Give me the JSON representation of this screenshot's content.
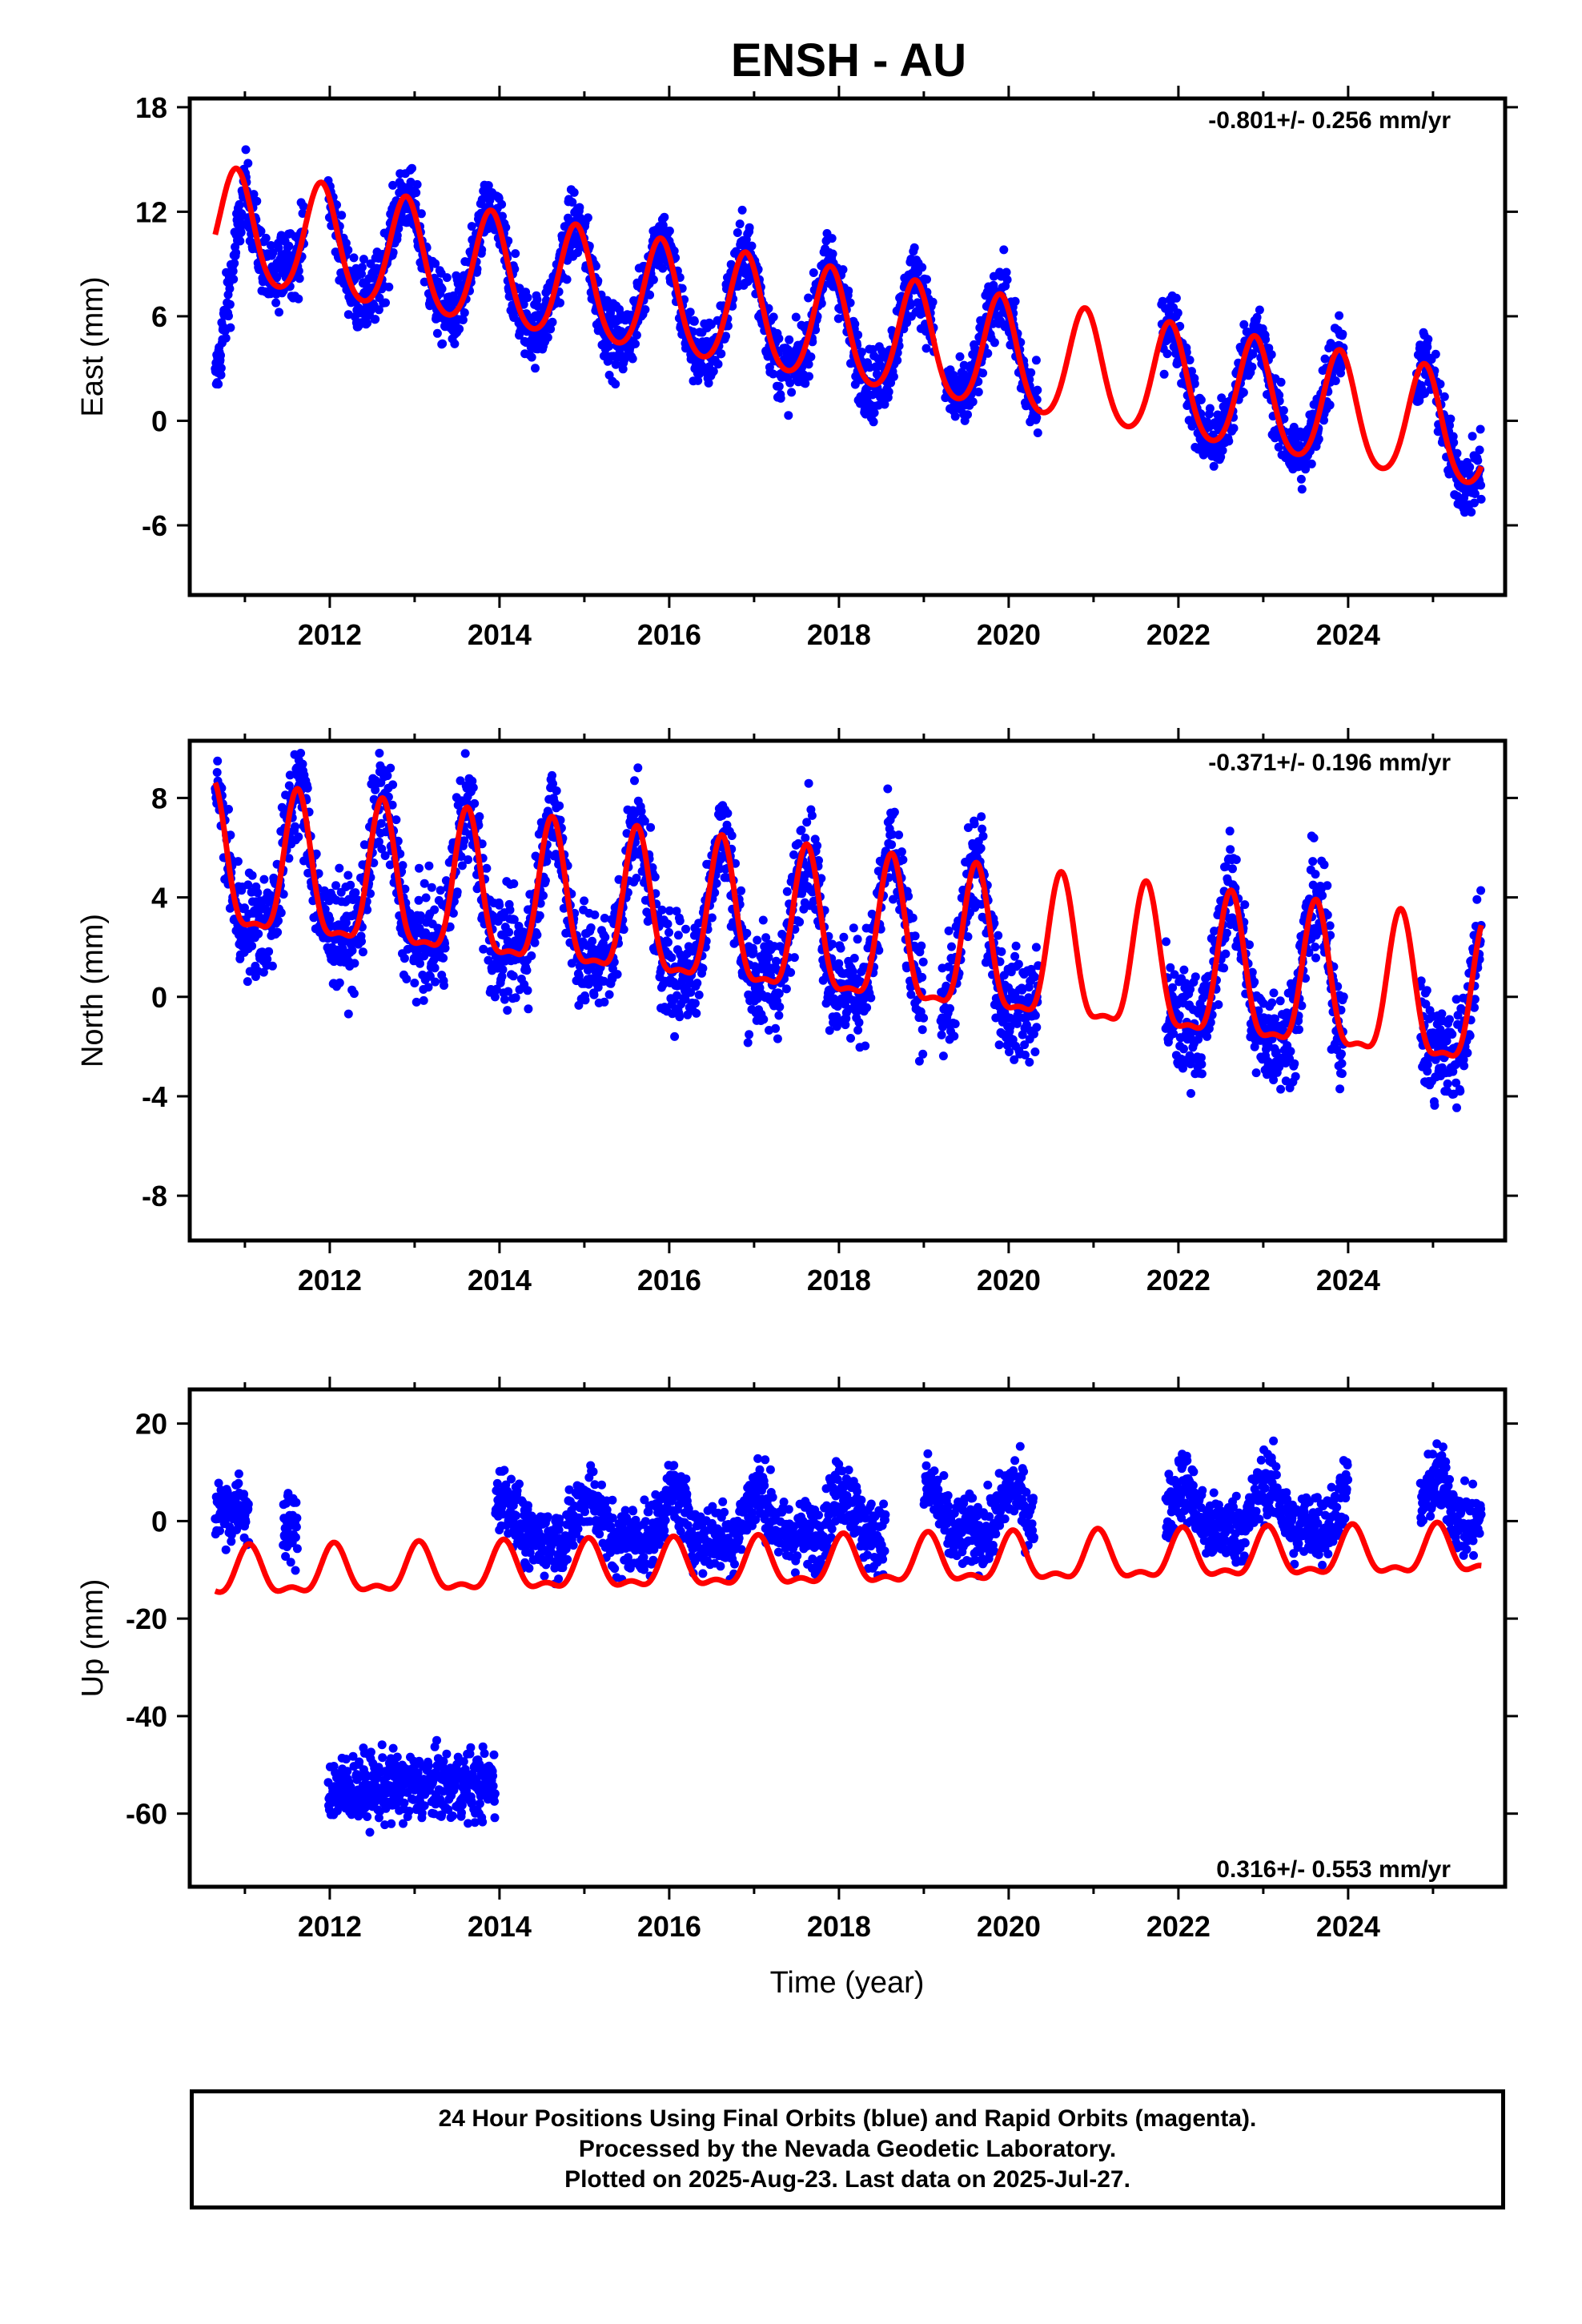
{
  "chart_data": {
    "type": "scatter",
    "title": "ENSH - AU",
    "xlabel": "Time (year)",
    "x_ticks": [
      2012,
      2014,
      2016,
      2018,
      2020,
      2022,
      2024
    ],
    "x_tick_labels": [
      "2012",
      "2014",
      "2016",
      "2018",
      "2020",
      "2022",
      "2024"
    ],
    "xlim": [
      2010.35,
      2025.85
    ],
    "colors": {
      "data": "#0000ff",
      "model": "#ff0000"
    },
    "panels": [
      {
        "ylabel": "East (mm)",
        "rate_label": "-0.801+/- 0.256 mm/yr",
        "rate_position": "top-right",
        "ylim": [
          -10,
          18.5
        ],
        "y_ticks": [
          -6,
          0,
          6,
          12,
          18
        ],
        "y_tick_labels": [
          "-6",
          "0",
          "6",
          "12",
          "18"
        ],
        "model": {
          "offset": 5.2,
          "rate": -0.801,
          "annual_amp": 3.2,
          "semiannual_amp": 0.4,
          "phase": -0.1
        },
        "data_gaps": [
          [
            2011.7,
            2011.98
          ],
          [
            2019.12,
            2019.25
          ],
          [
            2020.35,
            2021.8
          ],
          [
            2023.95,
            2024.8
          ]
        ],
        "noise": 1.4,
        "data_segments": [
          {
            "x0": 2010.65,
            "x1": 2011.0,
            "level0": 2.0,
            "level1": 13.5
          },
          {
            "x0": 2011.38,
            "x1": 2011.55,
            "level0": 8.5,
            "level1": 10.0
          }
        ]
      },
      {
        "ylabel": "North (mm)",
        "rate_label": "-0.371+/- 0.196 mm/yr",
        "rate_position": "top-right",
        "ylim": [
          -9.8,
          10.3
        ],
        "y_ticks": [
          -8,
          -4,
          0,
          4,
          8
        ],
        "y_tick_labels": [
          "-8",
          "-4",
          "0",
          "4",
          "8"
        ],
        "model": {
          "offset": 2.3,
          "rate": -0.371,
          "annual_amp": 2.8,
          "semiannual_amp": 0.9,
          "phase": 0.62
        },
        "data_gaps": [
          [
            2019.0,
            2019.2
          ],
          [
            2020.35,
            2021.85
          ],
          [
            2023.95,
            2024.85
          ]
        ],
        "noise": 1.5
      },
      {
        "ylabel": "Up (mm)",
        "rate_label": "0.316+/- 0.553 mm/yr",
        "rate_position": "bottom-right",
        "ylim": [
          -75,
          27
        ],
        "y_ticks": [
          -60,
          -40,
          -20,
          0,
          20
        ],
        "y_tick_labels": [
          "-60",
          "-40",
          "-20",
          "0",
          "20"
        ],
        "model": {
          "offset": -9.0,
          "rate": 0.316,
          "annual_amp": 4.5,
          "semiannual_amp": 2.0,
          "phase": 0.05
        },
        "data_gaps": [
          [
            2011.05,
            2011.45
          ],
          [
            2011.62,
            2011.98
          ],
          [
            2018.55,
            2019.0
          ],
          [
            2020.3,
            2021.85
          ],
          [
            2024.0,
            2024.85
          ]
        ],
        "noise": 5.0,
        "data_segments": [
          {
            "x0": 2010.65,
            "x1": 2011.05,
            "level0": 3.0,
            "level1": 2.0
          },
          {
            "x0": 2011.45,
            "x1": 2011.62,
            "level0": -2.0,
            "level1": -2.0
          },
          {
            "x0": 2011.98,
            "x1": 2013.95,
            "level0": -55.0,
            "level1": -54.0
          }
        ]
      }
    ]
  },
  "footer": {
    "line1": "24 Hour Positions Using Final Orbits (blue) and Rapid Orbits (magenta).",
    "line2": "Processed by the Nevada Geodetic Laboratory.",
    "line3": "Plotted on 2025-Aug-23. Last data on 2025-Jul-27."
  }
}
